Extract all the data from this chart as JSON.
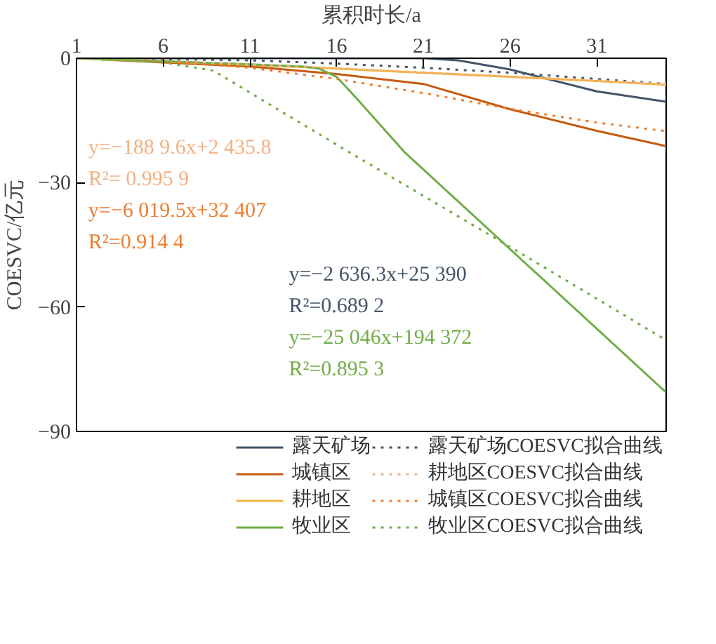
{
  "chart_data": {
    "type": "line",
    "xlabel": "累积时长/a",
    "ylabel": "COESVC/亿元",
    "xlim": [
      1,
      35
    ],
    "xticks": [
      1,
      6,
      11,
      16,
      21,
      26,
      31
    ],
    "ylim": [
      -90,
      0
    ],
    "yticks": [
      0,
      -30,
      -60,
      -90
    ],
    "grid": false,
    "legend": "bottom",
    "line_style": "solid",
    "series": [
      {
        "name": "露天矿场",
        "color": "#44546a",
        "x": [
          1,
          6,
          11,
          16,
          21,
          23,
          26,
          31,
          35
        ],
        "values": [
          0,
          0,
          0,
          0,
          0,
          -0.5,
          -2.7,
          -8,
          -10.5
        ]
      },
      {
        "name": "城镇区",
        "color": "#c55a11",
        "x": [
          1,
          6,
          11,
          16,
          21,
          26,
          31,
          35
        ],
        "values": [
          0,
          -1,
          -2,
          -3.8,
          -6.2,
          -12.3,
          -17.5,
          -21.2
        ]
      },
      {
        "name": "耕地区",
        "color": "#f5b041",
        "x": [
          1,
          6,
          11,
          16,
          21,
          26,
          31,
          35
        ],
        "values": [
          0,
          -0.8,
          -1.6,
          -2.5,
          -3.5,
          -4.5,
          -5.5,
          -6.4
        ]
      },
      {
        "name": "牧业区",
        "color": "#70ad47",
        "x": [
          1,
          6,
          11,
          14,
          15,
          16,
          17,
          19.9,
          35
        ],
        "values": [
          0,
          -0.7,
          -1.5,
          -2,
          -2.5,
          -4.5,
          -9,
          -22.6,
          -80.6
        ]
      },
      {
        "name": "露天矿场COESVC拟合曲线",
        "color": "#44546a",
        "line_style": "dotted",
        "x": [
          1,
          11,
          16,
          21,
          26,
          31,
          35
        ],
        "values": [
          0,
          -0.5,
          -1.3,
          -2.3,
          -3.5,
          -5,
          -6.2
        ]
      },
      {
        "name": "耕地区COESVC拟合曲线",
        "color": "#f4b183",
        "line_style": "dotted",
        "x": [
          1,
          6,
          11,
          16,
          21,
          26,
          31,
          35
        ],
        "values": [
          0,
          -0.7,
          -1.5,
          -2.4,
          -3.4,
          -4.4,
          -5.4,
          -6.3
        ]
      },
      {
        "name": "城镇区COESVC拟合曲线",
        "color": "#ed7d31",
        "line_style": "dotted",
        "x": [
          1,
          6,
          11,
          16,
          21,
          26,
          31,
          35
        ],
        "values": [
          0,
          -0.7,
          -2.3,
          -5,
          -8.4,
          -12.2,
          -15.5,
          -17.6
        ]
      },
      {
        "name": "牧业区COESVC拟合曲线",
        "color": "#70ad47",
        "line_style": "dotted",
        "x": [
          1,
          6,
          8.9,
          16.7,
          26,
          35
        ],
        "values": [
          0,
          -1,
          -3,
          -22.6,
          -45.5,
          -68
        ]
      }
    ],
    "annotations": [
      "y=−188 9.6x+2 435.8",
      "R²= 0.995 9",
      "y=−6 019.5x+32 407",
      "R²=0.914 4",
      "y=−2 636.3x+25 390",
      "R²=0.689 2",
      "y=−25 046x+194 372",
      "R²=0.895 3"
    ]
  }
}
